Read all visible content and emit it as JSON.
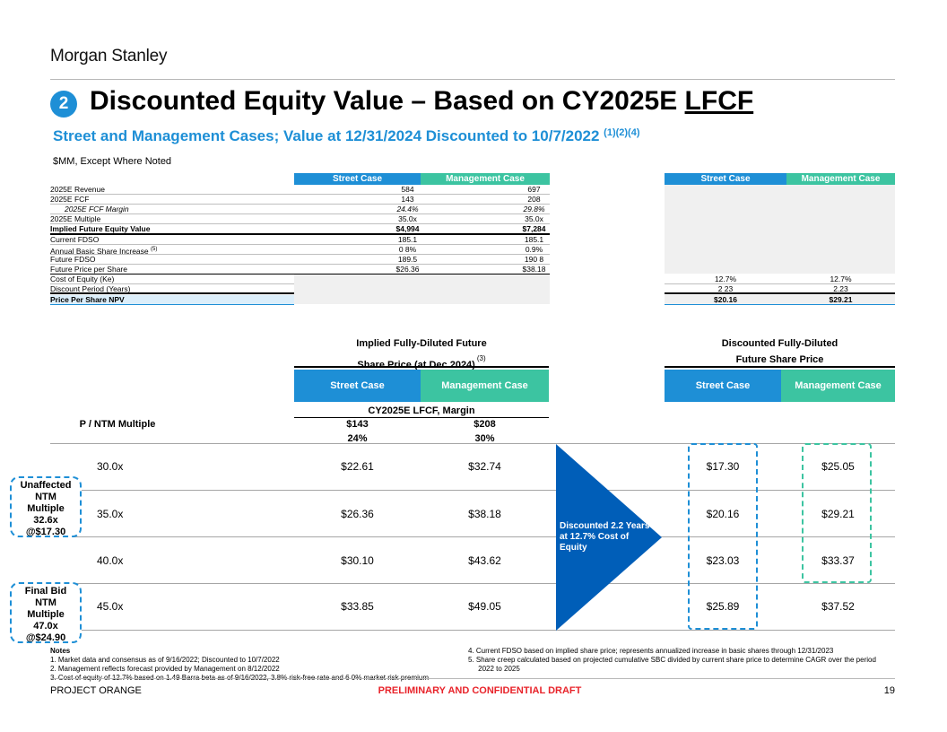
{
  "header": {
    "logo": "Morgan Stanley",
    "section_number": "2",
    "title_main": "Discounted Equity Value – Based on CY2025E ",
    "title_underlined": "LFCF",
    "subtitle": "Street and Management Cases; Value at 12/31/2024 Discounted to 10/7/2022 ",
    "subtitle_notes": "(1)(2)(4)",
    "units": "$MM, Except Where Noted"
  },
  "top_table": {
    "col_street": "Street Case",
    "col_mgmt": "Management Case",
    "rows": [
      {
        "label": "2025E Revenue",
        "street": "584",
        "mgmt": "697"
      },
      {
        "label": "2025E FCF",
        "street": "143",
        "mgmt": "208"
      },
      {
        "label": "2025E FCF Margin",
        "street": "24.4%",
        "mgmt": "29.8%"
      },
      {
        "label": "2025E Multiple",
        "street": "35.0x",
        "mgmt": "35.0x"
      },
      {
        "label": "Implied Future Equity Value",
        "street": "$4,994",
        "mgmt": "$7,284"
      },
      {
        "label": "Current FDSO",
        "street": "185.1",
        "mgmt": "185.1"
      },
      {
        "label": "Annual Basic Share Increase ",
        "label_note": "(5)",
        "street": "0 8%",
        "mgmt": "0.9%"
      },
      {
        "label": "Future FDSO",
        "street": "189.5",
        "mgmt": "190 8"
      },
      {
        "label": "Future Price per Share",
        "street": "$26.36",
        "mgmt": "$38.18"
      },
      {
        "label": "Cost of Equity (Ke)",
        "street": "12.7%",
        "mgmt": "12.7%"
      },
      {
        "label": "Discount Period (Years)",
        "street": "2 23",
        "mgmt": "2.23"
      },
      {
        "label": "Price Per Share NPV",
        "street": "$20.16",
        "mgmt": "$29.21"
      }
    ]
  },
  "sensitivity": {
    "left_group_line1": "Implied Fully-Diluted Future",
    "left_group_line2": "Share Price (at Dec 2024)",
    "left_group_note": "(3)",
    "right_group_line1": "Discounted Fully-Diluted",
    "right_group_line2": "Future Share Price",
    "col_street": "Street Case",
    "col_mgmt": "Management Case",
    "metric_label": "CY2025E LFCF, Margin",
    "row_header": "P / NTM Multiple",
    "fcf_street": "$143",
    "fcf_mgmt": "$208",
    "margin_street": "24%",
    "margin_mgmt": "30%",
    "rows": [
      {
        "multiple": "30.0x",
        "fut_street": "$22.61",
        "fut_mgmt": "$32.74",
        "disc_street": "$17.30",
        "disc_mgmt": "$25.05"
      },
      {
        "multiple": "35.0x",
        "fut_street": "$26.36",
        "fut_mgmt": "$38.18",
        "disc_street": "$20.16",
        "disc_mgmt": "$29.21"
      },
      {
        "multiple": "40.0x",
        "fut_street": "$30.10",
        "fut_mgmt": "$43.62",
        "disc_street": "$23.03",
        "disc_mgmt": "$33.37"
      },
      {
        "multiple": "45.0x",
        "fut_street": "$33.85",
        "fut_mgmt": "$49.05",
        "disc_street": "$25.89",
        "disc_mgmt": "$37.52"
      }
    ],
    "arrow_text": "Discounted 2.2 Years at 12.7% Cost of Equity",
    "unaffected_bubble": [
      "Unaffected",
      "NTM",
      "Multiple",
      "32.6x",
      "@$17.30"
    ],
    "finalbid_bubble": [
      "Final Bid",
      "NTM",
      "Multiple",
      "47.0x",
      "@$24.90"
    ]
  },
  "notes": {
    "heading": "Notes",
    "left": [
      "1.  Market data and consensus as of 9/16/2022; Discounted to 10/7/2022",
      "2.  Management reflects forecast provided by Management on 8/12/2022",
      "3.  Cost of equity of 12.7% based on 1.49 Barra beta as of 9/16/2022, 3.8% risk-free rate and 6 0% market risk premium"
    ],
    "right": [
      "4.  Current FDSO based on implied share price; represents annualized increase in basic shares through 12/31/2023",
      "5.  Share creep calculated based on projected cumulative SBC divided by current share price to determine CAGR over the period",
      "     2022 to 2025"
    ]
  },
  "footer": {
    "project": "PROJECT ORANGE",
    "confidential": "PRELIMINARY AND CONFIDENTIAL DRAFT",
    "page": "19"
  },
  "colors": {
    "street_blue": "#1e8fd6",
    "mgmt_green": "#3cc4a1",
    "arrow_blue": "#005eb8",
    "confidential_red": "#e8232a"
  }
}
